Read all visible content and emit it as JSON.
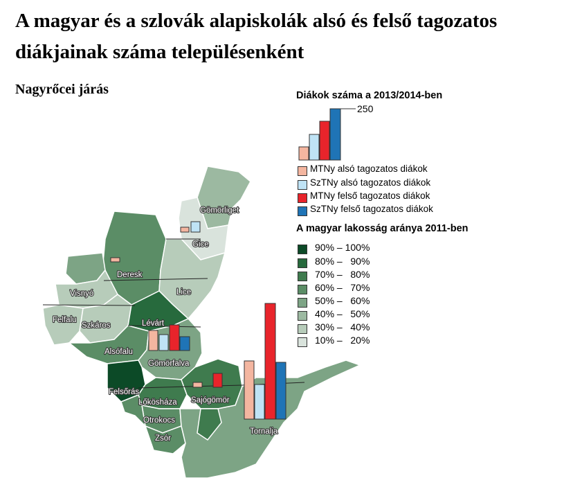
{
  "title": "A magyar és a szlovák alapiskolák alsó és felső tagozatos diákjainak  száma településenként",
  "subtitle": "Nagyrőcei járás",
  "students_legend": {
    "title": "Diákok száma a 2013/2014-ben",
    "scale_value": "250",
    "items": [
      {
        "label": "MTNy alsó tagozatos diákok",
        "color": "#f4b6a0"
      },
      {
        "label": "SzTNy alsó tagozatos diákok",
        "color": "#bfe3f5"
      },
      {
        "label": "MTNy felső tagozatos diákok",
        "color": "#e8242b"
      },
      {
        "label": "SzTNy felső tagozatos diákok",
        "color": "#1f74b6"
      }
    ]
  },
  "share_legend": {
    "title": "A magyar lakosság aránya 2011-ben",
    "items": [
      {
        "label": "90% – 100%",
        "color": "#0c4a27"
      },
      {
        "label": "80% –   90%",
        "color": "#276a3d"
      },
      {
        "label": "70% –   80%",
        "color": "#3f7b4e"
      },
      {
        "label": "60% –   70%",
        "color": "#5b8d66"
      },
      {
        "label": "50% –   60%",
        "color": "#7da485"
      },
      {
        "label": "40% –   50%",
        "color": "#9cb9a1"
      },
      {
        "label": "30% –   40%",
        "color": "#b7ccba"
      },
      {
        "label": "10% –   20%",
        "color": "#d9e3dc"
      }
    ]
  },
  "places": [
    {
      "name": "Gömörliget"
    },
    {
      "name": "Gice"
    },
    {
      "name": "Deresk"
    },
    {
      "name": "Lice"
    },
    {
      "name": "Visnyó"
    },
    {
      "name": "Felfalu"
    },
    {
      "name": "Szkáros"
    },
    {
      "name": "Lévárt"
    },
    {
      "name": "Alsófalu"
    },
    {
      "name": "Gömörfalva"
    },
    {
      "name": "Felsőrás"
    },
    {
      "name": "Lőkösháza"
    },
    {
      "name": "Sajógömör"
    },
    {
      "name": "Otrokocs"
    },
    {
      "name": "Tornalja"
    },
    {
      "name": "Zsór"
    }
  ]
}
